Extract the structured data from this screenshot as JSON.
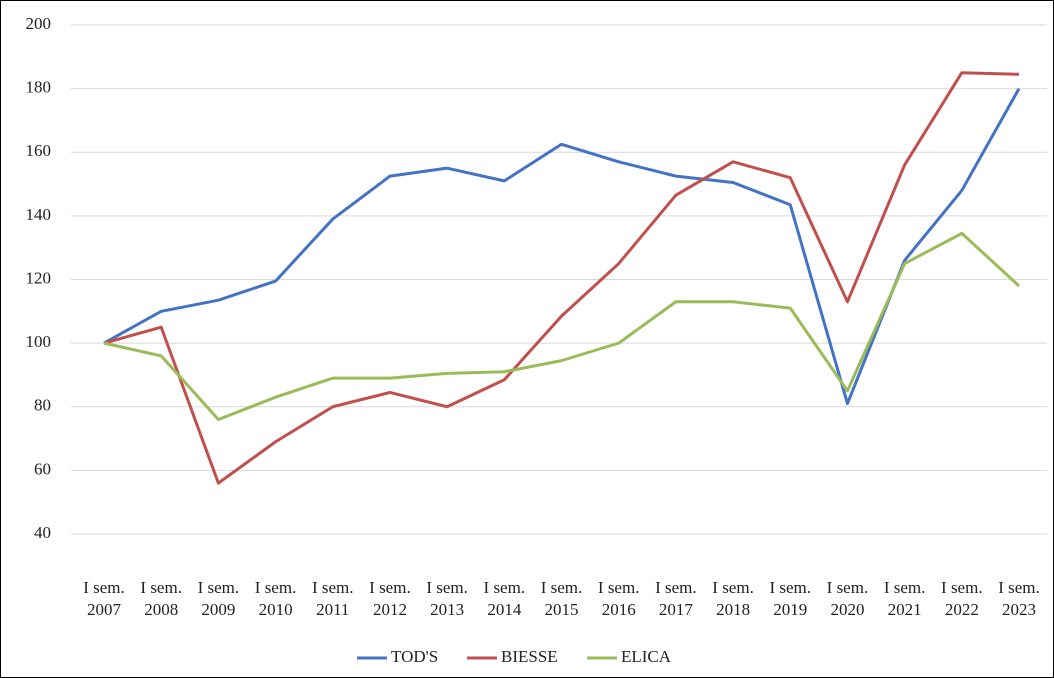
{
  "chart_data": {
    "type": "line",
    "categories": [
      "I sem. 2007",
      "I sem. 2008",
      "I sem. 2009",
      "I sem. 2010",
      "I sem. 2011",
      "I sem. 2012",
      "I sem. 2013",
      "I sem. 2014",
      "I sem. 2015",
      "I sem. 2016",
      "I sem. 2017",
      "I sem. 2018",
      "I sem. 2019",
      "I sem. 2020",
      "I sem. 2021",
      "I sem. 2022",
      "I sem. 2023"
    ],
    "series": [
      {
        "name": "TOD'S",
        "color": "#4472c4",
        "values": [
          100,
          110,
          113.5,
          119.5,
          139,
          152.5,
          155,
          151,
          162.5,
          157,
          152.5,
          150.5,
          143.5,
          81,
          126,
          148,
          180
        ]
      },
      {
        "name": "BIESSE",
        "color": "#c0504d",
        "values": [
          100,
          105,
          56,
          69,
          80,
          84.5,
          80,
          88.5,
          108.5,
          125,
          146.5,
          157,
          152,
          113,
          156,
          185,
          184.5
        ]
      },
      {
        "name": "ELICA",
        "color": "#9bbb59",
        "values": [
          100,
          96,
          76,
          83,
          89,
          89,
          90.5,
          91,
          94.5,
          100,
          113,
          113,
          111,
          85,
          125,
          134.5,
          118
        ]
      }
    ],
    "ylim": [
      40,
      200
    ],
    "yticks": [
      40,
      60,
      80,
      100,
      120,
      140,
      160,
      180,
      200
    ],
    "grid": true,
    "legend": "bottom"
  }
}
